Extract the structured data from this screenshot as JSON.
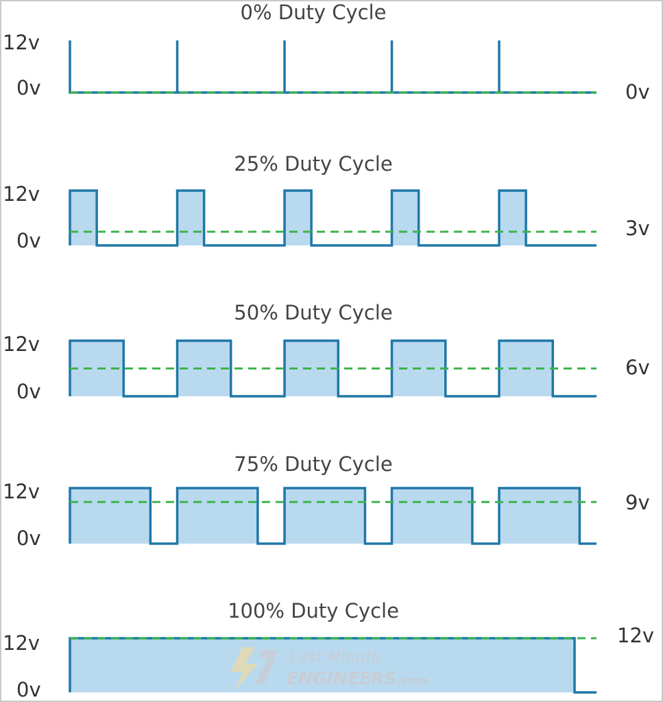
{
  "colors": {
    "waveform": "#1f77a8",
    "fill": "#b9d9ef",
    "average_line": "#3cb44b",
    "text": "#333333"
  },
  "axis_labels": {
    "high": "12v",
    "low": "0v"
  },
  "panels": [
    {
      "title": "0% Duty Cycle",
      "duty": 0.0,
      "average_label": "0v",
      "average_value": 0
    },
    {
      "title": "25% Duty Cycle",
      "duty": 0.25,
      "average_label": "3v",
      "average_value": 3
    },
    {
      "title": "50% Duty Cycle",
      "duty": 0.5,
      "average_label": "6v",
      "average_value": 6
    },
    {
      "title": "75% Duty Cycle",
      "duty": 0.75,
      "average_label": "9v",
      "average_value": 9
    },
    {
      "title": "100% Duty Cycle",
      "duty": 1.0,
      "average_label": "12v",
      "average_value": 12
    }
  ],
  "cycles": 5,
  "voltage_max": 12,
  "watermark": {
    "line1": "Last Minute",
    "line2": "ENGINEERS",
    "suffix": ".com",
    "icon": "lightning-bolt-icon"
  }
}
